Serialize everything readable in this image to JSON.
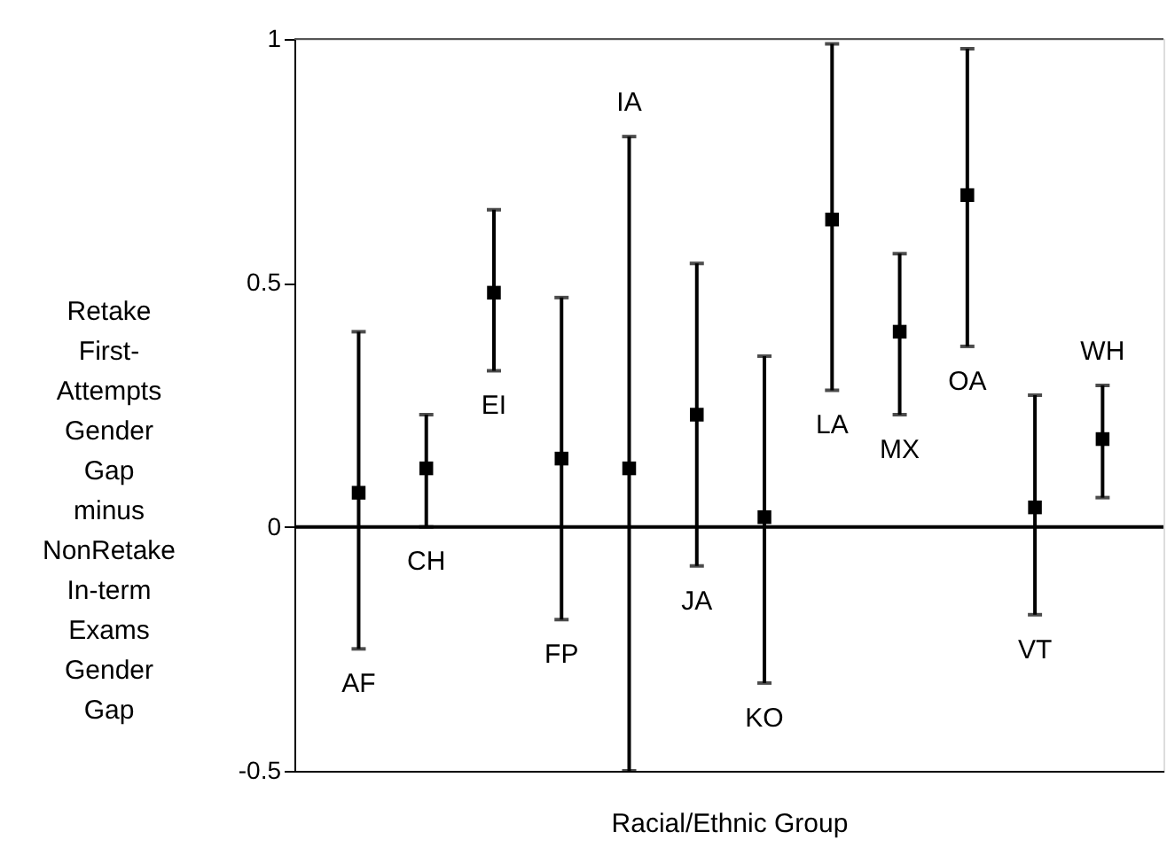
{
  "chart_data": {
    "type": "scatter",
    "xlabel": "Racial/Ethnic Group",
    "ylabel": "Retake First-Attempts Gender Gap minus NonRetake In-term Exams Gender Gap",
    "categories": [
      "AF",
      "CH",
      "EI",
      "FP",
      "IA",
      "JA",
      "KO",
      "LA",
      "MX",
      "OA",
      "VT",
      "WH"
    ],
    "values": [
      0.07,
      0.12,
      0.48,
      0.14,
      0.12,
      0.23,
      0.02,
      0.63,
      0.4,
      0.68,
      0.04,
      0.18
    ],
    "errors": [
      [
        -0.25,
        0.4
      ],
      [
        0.0,
        0.23
      ],
      [
        0.32,
        0.65
      ],
      [
        -0.19,
        0.47
      ],
      [
        -0.5,
        0.8
      ],
      [
        -0.08,
        0.54
      ],
      [
        -0.32,
        0.35
      ],
      [
        0.28,
        0.99
      ],
      [
        0.23,
        0.56
      ],
      [
        0.37,
        0.98
      ],
      [
        -0.18,
        0.27
      ],
      [
        0.06,
        0.29
      ]
    ],
    "color": "#000000",
    "marker": "square",
    "ylim": [
      -0.5,
      1
    ],
    "yticks": [
      -0.5,
      0,
      0.5,
      1
    ],
    "tick_labels": "y",
    "grid": false,
    "legend": false,
    "ref_lines": [
      {
        "axis": "y",
        "value": 0,
        "color": "#000000"
      }
    ]
  }
}
